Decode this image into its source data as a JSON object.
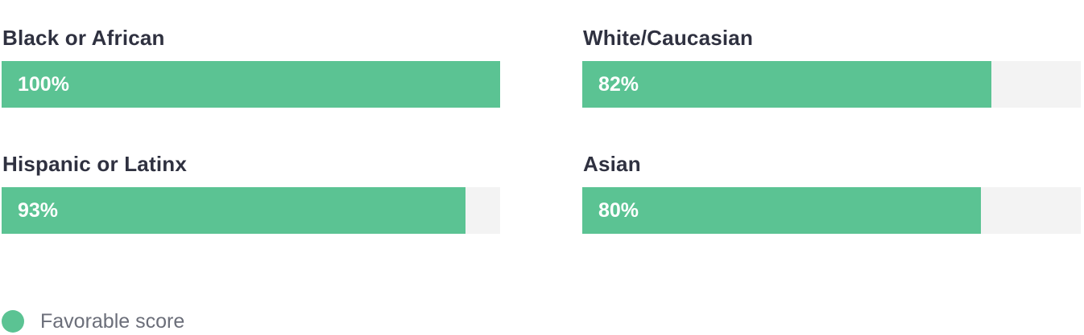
{
  "colors": {
    "favorable": "#5bc393",
    "track": "#f3f3f3",
    "label": "#2f3140",
    "legend_text": "#6b6e79"
  },
  "chart_data": {
    "type": "bar",
    "orientation": "horizontal",
    "categories": [
      "Black or African",
      "White/Caucasian",
      "Hispanic or Latinx",
      "Asian"
    ],
    "series": [
      {
        "name": "Favorable score",
        "values": [
          100,
          82,
          93,
          80
        ],
        "labels": [
          "100%",
          "82%",
          "93%",
          "80%"
        ]
      }
    ],
    "xlim": [
      0,
      100
    ],
    "grid": false,
    "legend_position": "bottom-left"
  },
  "legend": {
    "label": "Favorable score"
  }
}
